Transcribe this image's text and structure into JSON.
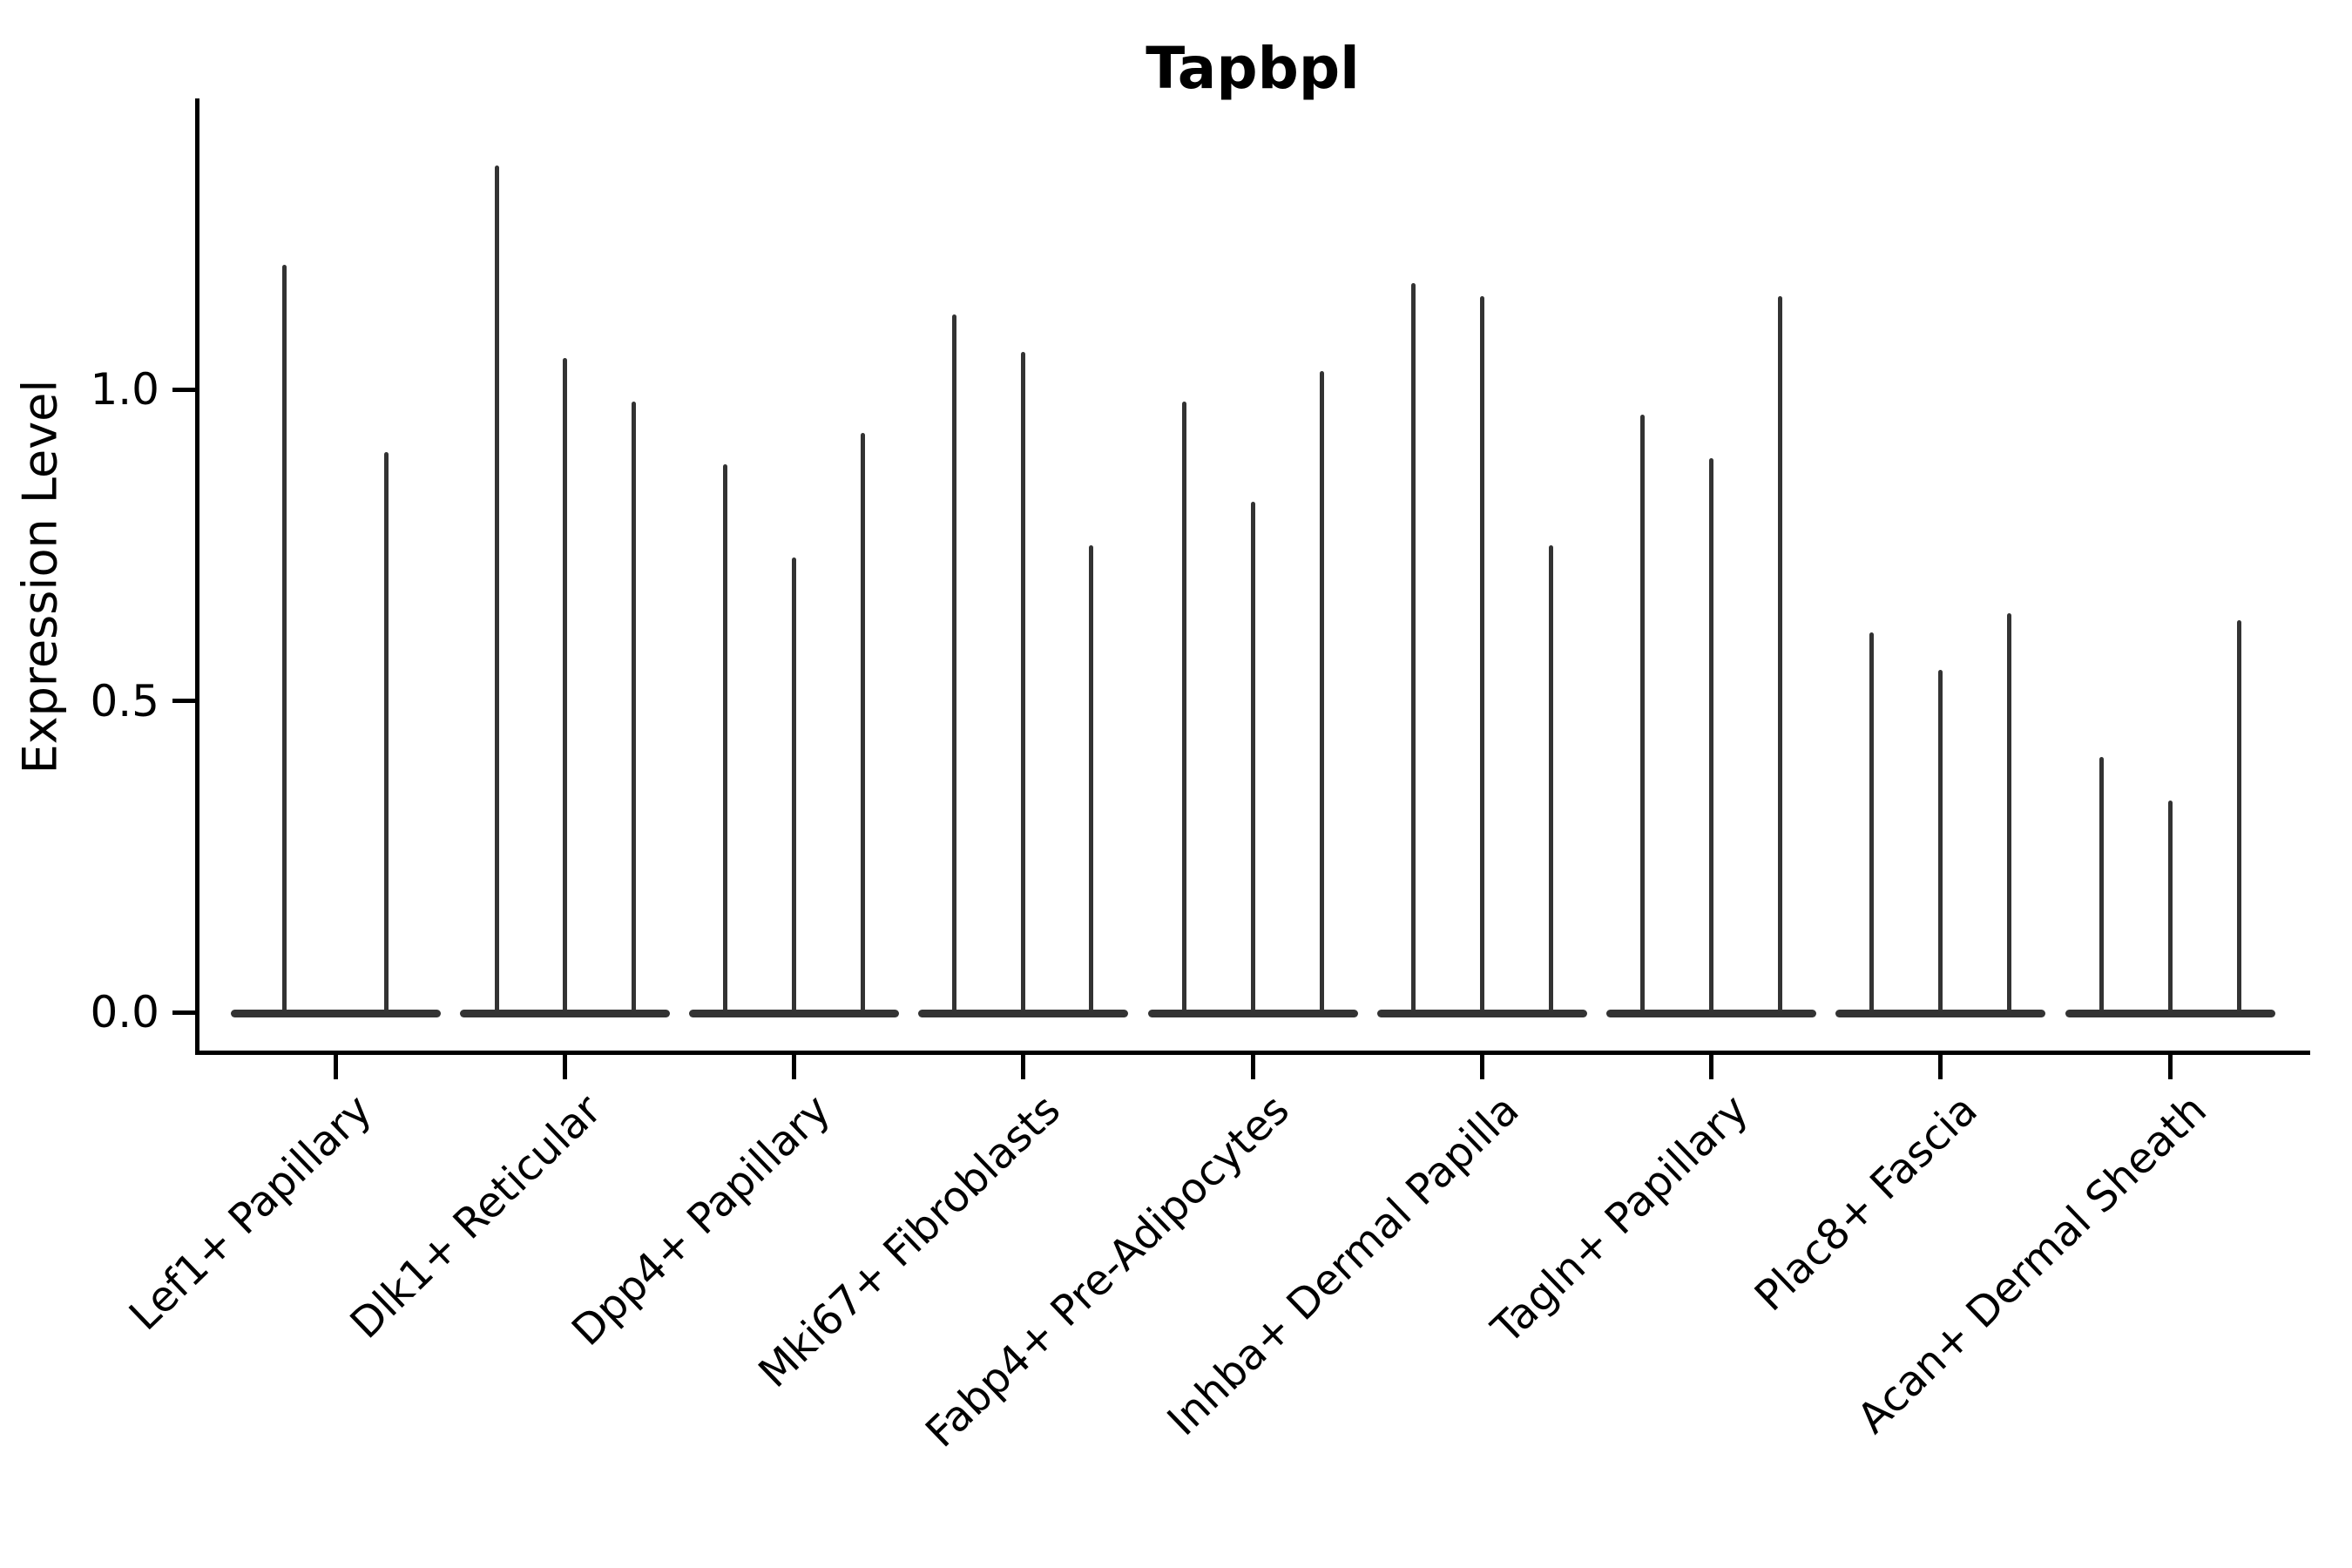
{
  "title": "Tapbpl",
  "y_axis": {
    "label": "Expression Level",
    "tick_labels": [
      "0.0",
      "0.5",
      "1.0"
    ]
  },
  "x_axis": {
    "tick_labels": [
      "Lef1+ Papillary",
      "Dlk1+ Reticular",
      "Dpp4+ Papillary",
      "Mki67+ Fibroblasts",
      "Fabp4+ Pre-Adipocytes",
      "Inhba+ Dermal Papilla",
      "Tagln+ Papillary",
      "Plac8+ Fascia",
      "Acan+ Dermal Sheath"
    ]
  },
  "colors": {
    "violin": "#333333",
    "axis": "#000000",
    "background": "#ffffff"
  },
  "chart_data": {
    "type": "violin",
    "title": "Tapbpl",
    "xlabel": "",
    "ylabel": "Expression Level",
    "yticks": [
      0.0,
      0.5,
      1.0
    ],
    "ytick_labels": [
      "0.0",
      "0.5",
      "1.0"
    ],
    "ylim": [
      -0.06,
      1.46
    ],
    "grid": false,
    "legend_position": "none",
    "description": "Needle-thin violin plot of Tapbpl expression; each category holds narrow violins whose bulk sits at 0 with a thin spike to the listed max expression value.",
    "categories": [
      "Lef1+ Papillary",
      "Dlk1+ Reticular",
      "Dpp4+ Papillary",
      "Mki67+ Fibroblasts",
      "Fabp4+ Pre-Adipocytes",
      "Inhba+ Dermal Papilla",
      "Tagln+ Papillary",
      "Plac8+ Fascia",
      "Acan+ Dermal Sheath"
    ],
    "series": [
      {
        "category": "Lef1+ Papillary",
        "violins": [
          {
            "offset": -59,
            "max": 1.2
          },
          {
            "offset": 58,
            "max": 0.9
          }
        ]
      },
      {
        "category": "Dlk1+ Reticular",
        "violins": [
          {
            "offset": -78,
            "max": 1.36
          },
          {
            "offset": 0,
            "max": 1.05
          },
          {
            "offset": 79,
            "max": 0.98
          }
        ]
      },
      {
        "category": "Dpp4+ Papillary",
        "violins": [
          {
            "offset": -79,
            "max": 0.88
          },
          {
            "offset": 0,
            "max": 0.73
          },
          {
            "offset": 79,
            "max": 0.93
          }
        ]
      },
      {
        "category": "Mki67+ Fibroblasts",
        "violins": [
          {
            "offset": -79,
            "max": 1.12
          },
          {
            "offset": 0,
            "max": 1.06
          },
          {
            "offset": 78,
            "max": 0.75
          }
        ]
      },
      {
        "category": "Fabp4+ Pre-Adipocytes",
        "violins": [
          {
            "offset": -79,
            "max": 0.98
          },
          {
            "offset": 0,
            "max": 0.82
          },
          {
            "offset": 79,
            "max": 1.03
          }
        ]
      },
      {
        "category": "Inhba+ Dermal Papilla",
        "violins": [
          {
            "offset": -79,
            "max": 1.17
          },
          {
            "offset": 0,
            "max": 1.15
          },
          {
            "offset": 79,
            "max": 0.75
          }
        ]
      },
      {
        "category": "Tagln+ Papillary",
        "violins": [
          {
            "offset": -79,
            "max": 0.96
          },
          {
            "offset": 0,
            "max": 0.89
          },
          {
            "offset": 79,
            "max": 1.15
          }
        ]
      },
      {
        "category": "Plac8+ Fascia",
        "violins": [
          {
            "offset": -79,
            "max": 0.61
          },
          {
            "offset": 0,
            "max": 0.55
          },
          {
            "offset": 79,
            "max": 0.64
          }
        ]
      },
      {
        "category": "Acan+ Dermal Sheath",
        "violins": [
          {
            "offset": -79,
            "max": 0.41
          },
          {
            "offset": 0,
            "max": 0.34
          },
          {
            "offset": 79,
            "max": 0.63
          }
        ]
      }
    ]
  }
}
